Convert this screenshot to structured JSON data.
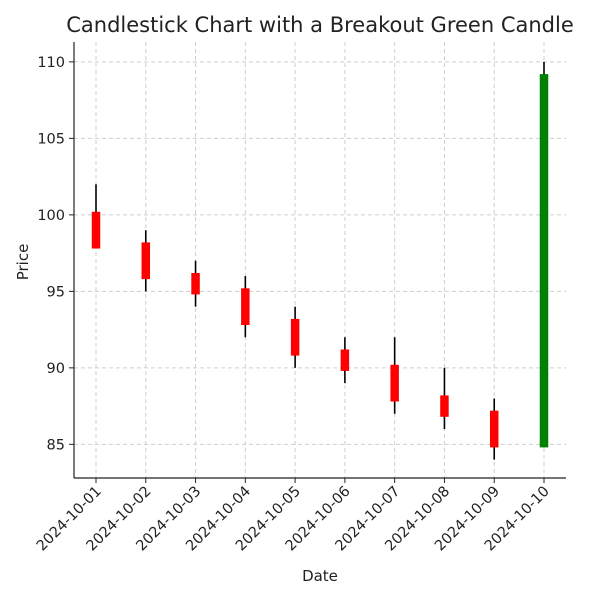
{
  "chart_data": {
    "type": "candlestick",
    "title": "Candlestick Chart with a Breakout Green Candle",
    "xlabel": "Date",
    "ylabel": "Price",
    "ylim": [
      82.8,
      111.3
    ],
    "yticks": [
      85,
      90,
      95,
      100,
      105,
      110
    ],
    "grid": true,
    "categories": [
      "2024-10-01",
      "2024-10-02",
      "2024-10-03",
      "2024-10-04",
      "2024-10-05",
      "2024-10-06",
      "2024-10-07",
      "2024-10-08",
      "2024-10-09",
      "2024-10-10"
    ],
    "series": [
      {
        "open": [
          100.2,
          98.2,
          96.2,
          95.2,
          93.2,
          91.2,
          90.2,
          88.2,
          87.2,
          84.8
        ],
        "high": [
          102.0,
          99.0,
          97.0,
          96.0,
          94.0,
          92.0,
          92.0,
          90.0,
          88.0,
          110.0
        ],
        "low": [
          97.8,
          95.0,
          94.0,
          92.0,
          90.0,
          89.0,
          87.0,
          86.0,
          84.0,
          84.8
        ],
        "close": [
          97.8,
          95.8,
          94.8,
          92.8,
          90.8,
          89.8,
          87.8,
          86.8,
          84.8,
          109.2
        ]
      }
    ],
    "colors": {
      "up": "#008000",
      "down": "#ff0000",
      "wick": "#000000"
    }
  }
}
